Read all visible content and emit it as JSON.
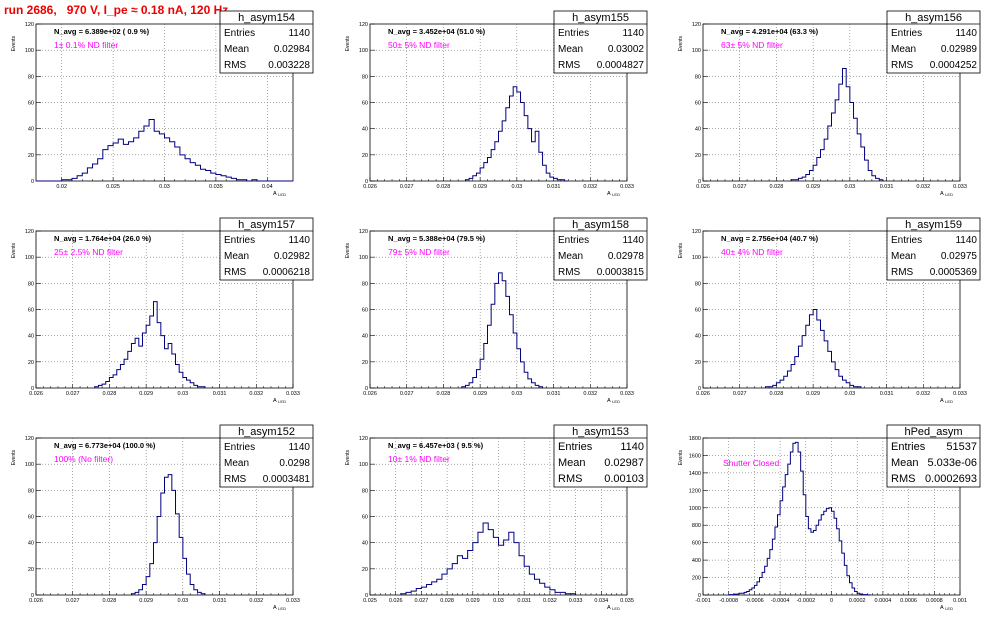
{
  "page_title": "run 2686,   970 V, I_pe ≈ 0.18 nA, 120 Hz",
  "colors": {
    "histogram": "#000080",
    "filter_text": "#ff00ff",
    "title_text": "#ee0000",
    "grid": "#555555"
  },
  "stat_labels": {
    "entries": "Entries",
    "mean": "Mean",
    "rms": "RMS"
  },
  "ylabel": "Events",
  "xlabel": "A",
  "xlabel_sub": "LED",
  "chart_data": [
    {
      "type": "histogram",
      "name": "h_asym154",
      "navg_text": "N_avg = 6.389e+02 ( 0.9 %)",
      "filter_text": "1± 0.1% ND filter",
      "stats": {
        "entries": "1140",
        "mean": "0.02984",
        "rms": "0.003228"
      },
      "xlim": [
        0.0175,
        0.0425
      ],
      "ylim": [
        0,
        120
      ],
      "xticks": [
        "0.02",
        "0.025",
        "0.03",
        "0.035",
        "0.04"
      ],
      "xtick_values": [
        0.02,
        0.025,
        0.03,
        0.035,
        0.04
      ],
      "yticks": [
        "0",
        "20",
        "40",
        "60",
        "80",
        "100",
        "120"
      ],
      "ytick_values": [
        0,
        20,
        40,
        60,
        80,
        100,
        120
      ],
      "bins": {
        "start": 0.0175,
        "width": 0.0005,
        "counts": [
          0,
          0,
          0,
          0,
          0,
          1,
          1,
          2,
          4,
          6,
          10,
          13,
          17,
          24,
          27,
          29,
          32,
          28,
          30,
          33,
          38,
          42,
          47,
          38,
          36,
          33,
          30,
          26,
          20,
          17,
          14,
          12,
          9,
          8,
          6,
          5,
          4,
          3,
          2,
          1,
          1,
          0,
          1,
          0,
          0,
          0,
          0,
          0,
          0,
          0
        ]
      }
    },
    {
      "type": "histogram",
      "name": "h_asym155",
      "navg_text": "N_avg = 3.452e+04 (51.0 %)",
      "filter_text": "50± 5% ND filter",
      "stats": {
        "entries": "1140",
        "mean": "0.03002",
        "rms": "0.0004827"
      },
      "xlim": [
        0.026,
        0.033
      ],
      "ylim": [
        0,
        120
      ],
      "xticks": [
        "0.026",
        "0.027",
        "0.028",
        "0.029",
        "0.03",
        "0.031",
        "0.032",
        "0.033"
      ],
      "xtick_values": [
        0.026,
        0.027,
        0.028,
        0.029,
        0.03,
        0.031,
        0.032,
        0.033
      ],
      "yticks": [
        "0",
        "20",
        "40",
        "60",
        "80",
        "100",
        "120"
      ],
      "ytick_values": [
        0,
        20,
        40,
        60,
        80,
        100,
        120
      ],
      "bins": {
        "start": 0.0286,
        "width": 0.0001,
        "counts": [
          1,
          2,
          4,
          6,
          10,
          14,
          18,
          24,
          30,
          38,
          46,
          56,
          65,
          72,
          68,
          60,
          50,
          40,
          30,
          38,
          22,
          12,
          6,
          3,
          2,
          1,
          1,
          0
        ]
      }
    },
    {
      "type": "histogram",
      "name": "h_asym156",
      "navg_text": "N_avg = 4.291e+04 (63.3 %)",
      "filter_text": "63± 5% ND filter",
      "stats": {
        "entries": "1140",
        "mean": "0.02989",
        "rms": "0.0004252"
      },
      "xlim": [
        0.026,
        0.033
      ],
      "ylim": [
        0,
        120
      ],
      "xticks": [
        "0.026",
        "0.027",
        "0.028",
        "0.029",
        "0.03",
        "0.031",
        "0.032",
        "0.033"
      ],
      "xtick_values": [
        0.026,
        0.027,
        0.028,
        0.029,
        0.03,
        0.031,
        0.032,
        0.033
      ],
      "bins": {
        "start": 0.0284,
        "width": 0.0001,
        "counts": [
          1,
          1,
          2,
          3,
          5,
          8,
          12,
          18,
          24,
          32,
          42,
          52,
          62,
          74,
          86,
          72,
          60,
          48,
          36,
          26,
          16,
          8,
          4,
          2,
          1
        ]
      },
      "yticks": [
        "0",
        "20",
        "40",
        "60",
        "80",
        "100",
        "120"
      ],
      "ytick_values": [
        0,
        20,
        40,
        60,
        80,
        100,
        120
      ]
    },
    {
      "type": "histogram",
      "name": "h_asym157",
      "navg_text": "N_avg = 1.764e+04 (26.0 %)",
      "filter_text": "25± 2.5% ND filter",
      "stats": {
        "entries": "1140",
        "mean": "0.02982",
        "rms": "0.0006218"
      },
      "xlim": [
        0.026,
        0.033
      ],
      "ylim": [
        0,
        120
      ],
      "xticks": [
        "0.026",
        "0.027",
        "0.028",
        "0.029",
        "0.03",
        "0.031",
        "0.032",
        "0.033"
      ],
      "xtick_values": [
        0.026,
        0.027,
        0.028,
        0.029,
        0.03,
        0.031,
        0.032,
        0.033
      ],
      "yticks": [
        "0",
        "20",
        "40",
        "60",
        "80",
        "100",
        "120"
      ],
      "ytick_values": [
        0,
        20,
        40,
        60,
        80,
        100,
        120
      ],
      "bins": {
        "start": 0.0276,
        "width": 0.0001,
        "counts": [
          1,
          2,
          3,
          5,
          8,
          10,
          14,
          18,
          22,
          28,
          34,
          38,
          32,
          42,
          48,
          55,
          66,
          50,
          40,
          30,
          34,
          26,
          18,
          12,
          8,
          6,
          4,
          2,
          1,
          1
        ]
      }
    },
    {
      "type": "histogram",
      "name": "h_asym158",
      "navg_text": "N_avg = 5.388e+04 (79.5 %)",
      "filter_text": "79± 5% ND filter",
      "stats": {
        "entries": "1140",
        "mean": "0.02978",
        "rms": "0.0003815"
      },
      "xlim": [
        0.026,
        0.033
      ],
      "ylim": [
        0,
        120
      ],
      "xticks": [
        "0.026",
        "0.027",
        "0.028",
        "0.029",
        "0.03",
        "0.031",
        "0.032",
        "0.033"
      ],
      "xtick_values": [
        0.026,
        0.027,
        0.028,
        0.029,
        0.03,
        0.031,
        0.032,
        0.033
      ],
      "yticks": [
        "0",
        "20",
        "40",
        "60",
        "80",
        "100",
        "120"
      ],
      "ytick_values": [
        0,
        20,
        40,
        60,
        80,
        100,
        120
      ],
      "bins": {
        "start": 0.0285,
        "width": 0.0001,
        "counts": [
          1,
          2,
          4,
          8,
          14,
          22,
          34,
          48,
          64,
          80,
          88,
          82,
          70,
          56,
          42,
          30,
          20,
          12,
          7,
          4,
          2,
          1
        ]
      }
    },
    {
      "type": "histogram",
      "name": "h_asym159",
      "navg_text": "N_avg = 2.756e+04 (40.7 %)",
      "filter_text": "40± 4% ND filter",
      "stats": {
        "entries": "1140",
        "mean": "0.02975",
        "rms": "0.0005369"
      },
      "xlim": [
        0.026,
        0.033
      ],
      "ylim": [
        0,
        120
      ],
      "xticks": [
        "0.026",
        "0.027",
        "0.028",
        "0.029",
        "0.03",
        "0.031",
        "0.032",
        "0.033"
      ],
      "xtick_values": [
        0.026,
        0.027,
        0.028,
        0.029,
        0.03,
        0.031,
        0.032,
        0.033
      ],
      "yticks": [
        "0",
        "20",
        "40",
        "60",
        "80",
        "100",
        "120"
      ],
      "ytick_values": [
        0,
        20,
        40,
        60,
        80,
        100,
        120
      ],
      "bins": {
        "start": 0.0277,
        "width": 0.0001,
        "counts": [
          1,
          1,
          2,
          4,
          6,
          9,
          13,
          18,
          24,
          32,
          40,
          48,
          56,
          60,
          52,
          44,
          36,
          28,
          20,
          14,
          9,
          6,
          4,
          2,
          1,
          1
        ]
      }
    },
    {
      "type": "histogram",
      "name": "h_asym152",
      "navg_text": "N_avg = 6.773e+04 (100.0 %)",
      "filter_text": "100% (No filter)",
      "stats": {
        "entries": "1140",
        "mean": "0.0298",
        "rms": "0.0003481"
      },
      "xlim": [
        0.026,
        0.033
      ],
      "ylim": [
        0,
        120
      ],
      "xticks": [
        "0.026",
        "0.027",
        "0.028",
        "0.029",
        "0.03",
        "0.031",
        "0.032",
        "0.033"
      ],
      "xtick_values": [
        0.026,
        0.027,
        0.028,
        0.029,
        0.03,
        0.031,
        0.032,
        0.033
      ],
      "yticks": [
        "0",
        "20",
        "40",
        "60",
        "80",
        "100",
        "120"
      ],
      "ytick_values": [
        0,
        20,
        40,
        60,
        80,
        100,
        120
      ],
      "bins": {
        "start": 0.0286,
        "width": 0.0001,
        "counts": [
          1,
          2,
          4,
          8,
          14,
          24,
          40,
          60,
          78,
          90,
          92,
          80,
          62,
          44,
          28,
          16,
          8,
          4,
          2,
          1
        ]
      }
    },
    {
      "type": "histogram",
      "name": "h_asym153",
      "navg_text": "N_avg = 6.457e+03 ( 9.5 %)",
      "filter_text": "10± 1% ND filter",
      "stats": {
        "entries": "1140",
        "mean": "0.02987",
        "rms": "0.00103"
      },
      "xlim": [
        0.025,
        0.035
      ],
      "ylim": [
        0,
        120
      ],
      "xticks": [
        "0.025",
        "0.026",
        "0.027",
        "0.028",
        "0.029",
        "0.03",
        "0.031",
        "0.032",
        "0.033",
        "0.034",
        "0.035"
      ],
      "xtick_values": [
        0.025,
        0.026,
        0.027,
        0.028,
        0.029,
        0.03,
        0.031,
        0.032,
        0.033,
        0.034,
        0.035
      ],
      "yticks": [
        "0",
        "20",
        "40",
        "60",
        "80",
        "100",
        "120"
      ],
      "ytick_values": [
        0,
        20,
        40,
        60,
        80,
        100,
        120
      ],
      "bins": {
        "start": 0.0262,
        "width": 0.0002,
        "counts": [
          1,
          2,
          3,
          5,
          6,
          8,
          10,
          12,
          16,
          20,
          24,
          30,
          28,
          34,
          40,
          48,
          55,
          50,
          44,
          38,
          42,
          48,
          40,
          30,
          22,
          16,
          12,
          9,
          6,
          4,
          2,
          2,
          1,
          1
        ]
      }
    },
    {
      "type": "histogram",
      "name": "hPed_asym",
      "navg_text": "",
      "filter_text": "Shutter Closed",
      "stats": {
        "entries": "51537",
        "mean": "5.033e-06",
        "rms": "0.0002693"
      },
      "xlim": [
        -0.001,
        0.001
      ],
      "ylim": [
        0,
        1800
      ],
      "xticks": [
        "-0.001",
        "-0.0008",
        "-0.0006",
        "-0.0004",
        "-0.0002",
        "0",
        "0.0002",
        "0.0004",
        "0.0006",
        "0.0008",
        "0.001"
      ],
      "xtick_values": [
        -0.001,
        -0.0008,
        -0.0006,
        -0.0004,
        -0.0002,
        0,
        0.0002,
        0.0004,
        0.0006,
        0.0008,
        0.001
      ],
      "yticks": [
        "0",
        "200",
        "400",
        "600",
        "800",
        "1000",
        "1200",
        "1400",
        "1600",
        "1800"
      ],
      "ytick_values": [
        0,
        200,
        400,
        600,
        800,
        1000,
        1200,
        1400,
        1600,
        1800
      ],
      "bins": {
        "start": -0.0008,
        "width": 2e-05,
        "counts": [
          5,
          5,
          10,
          10,
          20,
          20,
          30,
          40,
          60,
          80,
          110,
          150,
          200,
          260,
          330,
          420,
          520,
          640,
          780,
          920,
          1080,
          1240,
          1380,
          1500,
          1640,
          1740,
          1750,
          1640,
          1420,
          1150,
          900,
          760,
          720,
          740,
          800,
          860,
          920,
          960,
          990,
          1000,
          960,
          880,
          760,
          620,
          480,
          340,
          220,
          140,
          80,
          40,
          20,
          10,
          5,
          5,
          2
        ]
      }
    }
  ]
}
